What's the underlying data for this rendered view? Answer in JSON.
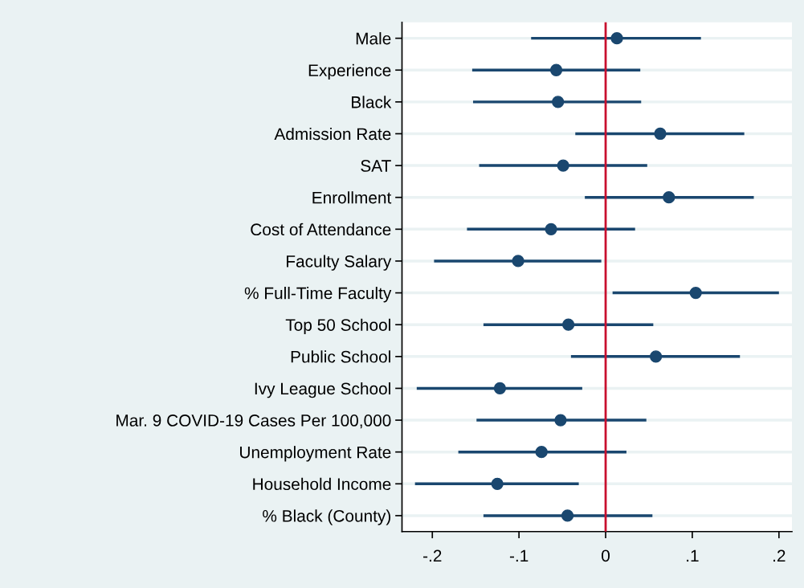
{
  "chart_data": {
    "type": "scatter",
    "orientation": "horizontal",
    "color": "#1a476f",
    "marker": "circle",
    "grid": "y",
    "legend": false,
    "categories": [
      "Male",
      "Experience",
      "Black",
      "Admission Rate",
      "SAT",
      "Enrollment",
      "Cost of Attendance",
      "Faculty Salary",
      "% Full-Time Faculty",
      "Top 50 School",
      "Public School",
      "Ivy League School",
      "Mar. 9 COVID-19 Cases Per 100,000",
      "Unemployment Rate",
      "Household Income",
      "% Black (County)"
    ],
    "values": [
      0.013,
      -0.057,
      -0.055,
      0.063,
      -0.049,
      0.073,
      -0.063,
      -0.101,
      0.104,
      -0.043,
      0.058,
      -0.122,
      -0.052,
      -0.074,
      -0.125,
      -0.044
    ],
    "errors": [
      [
        -0.086,
        0.11
      ],
      [
        -0.154,
        0.04
      ],
      [
        -0.153,
        0.041
      ],
      [
        -0.035,
        0.16
      ],
      [
        -0.146,
        0.048
      ],
      [
        -0.024,
        0.171
      ],
      [
        -0.16,
        0.034
      ],
      [
        -0.198,
        -0.005
      ],
      [
        0.008,
        0.2
      ],
      [
        -0.141,
        0.055
      ],
      [
        -0.04,
        0.155
      ],
      [
        -0.218,
        -0.027
      ],
      [
        -0.149,
        0.047
      ],
      [
        -0.17,
        0.024
      ],
      [
        -0.22,
        -0.031
      ],
      [
        -0.141,
        0.054
      ]
    ],
    "xlim": [
      -0.235,
      0.215
    ],
    "xticks": [
      {
        "value": -0.2,
        "label": "-.2"
      },
      {
        "value": -0.1,
        "label": "-.1"
      },
      0,
      {
        "value": 0.1,
        "label": ".1"
      },
      {
        "value": 0.2,
        "label": ".2"
      }
    ],
    "ref_lines": [
      {
        "axis": "x",
        "value": 0,
        "color": "#c8102e"
      }
    ]
  }
}
